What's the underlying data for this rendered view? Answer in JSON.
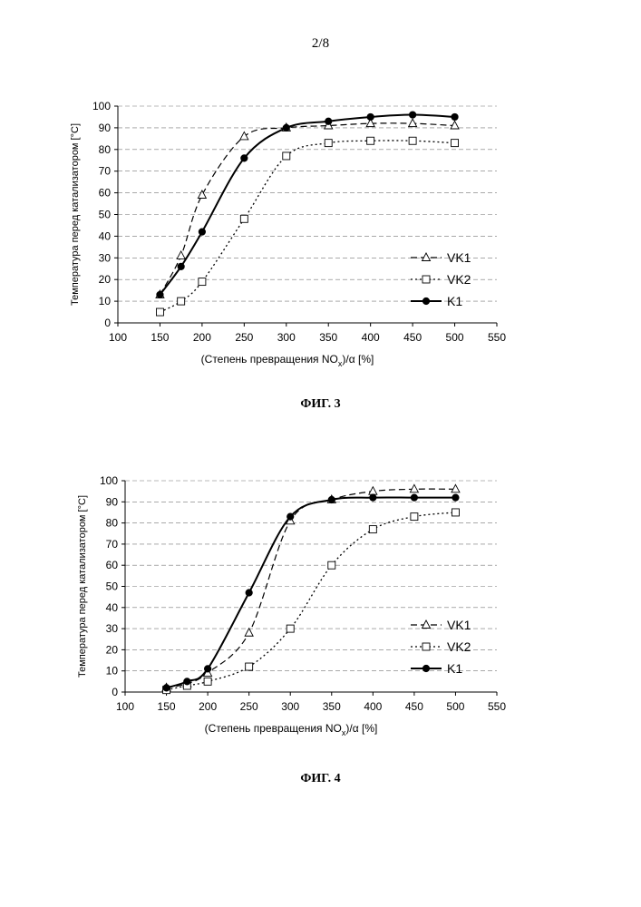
{
  "page": {
    "number": "2/8"
  },
  "chart_data": [
    {
      "type": "line",
      "caption": "ФИГ. 3",
      "ylabel": "Температура перед катализатором [°C]",
      "xlabel_parts": [
        "(Степень превращения NO",
        "x",
        ")/α [%]"
      ],
      "xlim": [
        100,
        550
      ],
      "ylim": [
        0,
        100
      ],
      "xticks": [
        100,
        150,
        200,
        250,
        300,
        350,
        400,
        450,
        500,
        550
      ],
      "yticks": [
        0,
        10,
        20,
        30,
        40,
        50,
        60,
        70,
        80,
        90,
        100
      ],
      "grid": "horizontal dashed",
      "legend_position": "right",
      "series": [
        {
          "name": "VK1",
          "marker": "triangle",
          "line": "dashed",
          "x": [
            150,
            175,
            200,
            250,
            300,
            350,
            400,
            450,
            500
          ],
          "y": [
            13,
            31,
            59,
            86,
            90,
            91,
            92,
            92,
            91
          ]
        },
        {
          "name": "VK2",
          "marker": "square",
          "line": "dotted",
          "x": [
            150,
            175,
            200,
            250,
            300,
            350,
            400,
            450,
            500
          ],
          "y": [
            5,
            10,
            19,
            48,
            77,
            83,
            84,
            84,
            83
          ]
        },
        {
          "name": "K1",
          "marker": "circle",
          "line": "solid",
          "x": [
            150,
            175,
            200,
            250,
            300,
            350,
            400,
            450,
            500
          ],
          "y": [
            13,
            26,
            42,
            76,
            90,
            93,
            95,
            96,
            95
          ]
        }
      ]
    },
    {
      "type": "line",
      "caption": "ФИГ. 4",
      "ylabel": "Температура перед катализатором [°C]",
      "xlabel_parts": [
        "(Степень превращения NO",
        "x",
        ")/α [%]"
      ],
      "xlim": [
        100,
        550
      ],
      "ylim": [
        0,
        100
      ],
      "xticks": [
        100,
        150,
        200,
        250,
        300,
        350,
        400,
        450,
        500,
        550
      ],
      "yticks": [
        0,
        10,
        20,
        30,
        40,
        50,
        60,
        70,
        80,
        90,
        100
      ],
      "grid": "horizontal dashed",
      "legend_position": "right",
      "series": [
        {
          "name": "VK1",
          "marker": "triangle",
          "line": "dashed",
          "x": [
            150,
            175,
            200,
            250,
            300,
            350,
            400,
            450,
            500
          ],
          "y": [
            2,
            4,
            9,
            28,
            81,
            91,
            95,
            96,
            96
          ]
        },
        {
          "name": "VK2",
          "marker": "square",
          "line": "dotted",
          "x": [
            150,
            175,
            200,
            250,
            300,
            350,
            400,
            450,
            500
          ],
          "y": [
            1,
            3,
            5,
            12,
            30,
            60,
            77,
            83,
            85
          ]
        },
        {
          "name": "K1",
          "marker": "circle",
          "line": "solid",
          "x": [
            150,
            175,
            200,
            250,
            300,
            350,
            400,
            450,
            500
          ],
          "y": [
            2,
            5,
            11,
            47,
            83,
            91,
            92,
            92,
            92
          ]
        }
      ]
    }
  ]
}
